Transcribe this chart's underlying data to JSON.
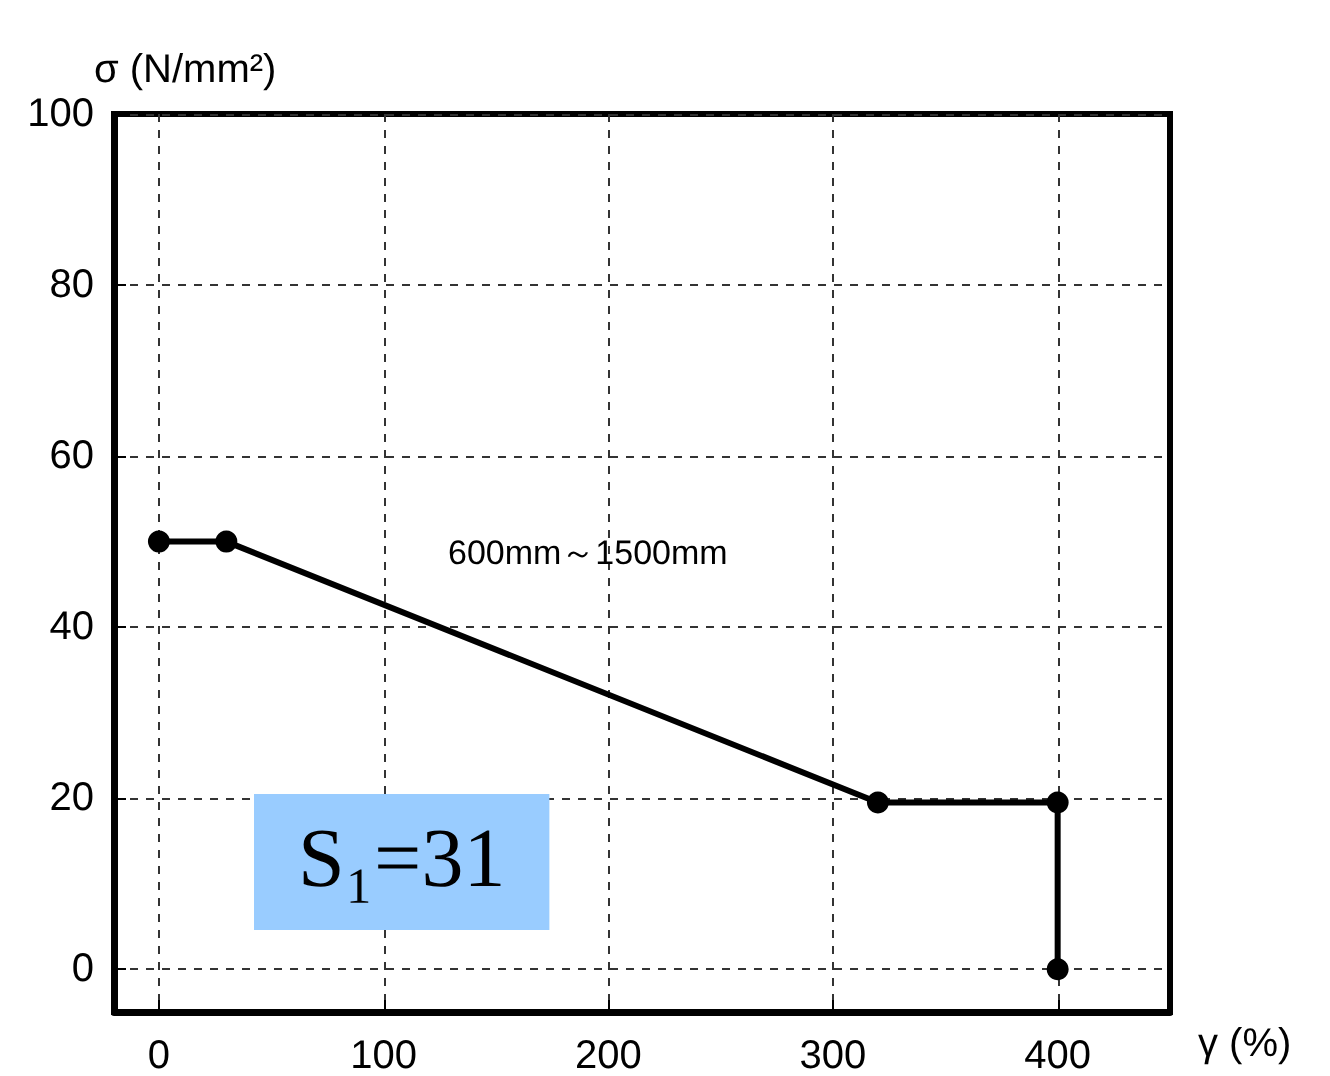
{
  "chart_data": {
    "type": "line",
    "xlabel": "γ (%)",
    "ylabel": "σ (N/mm²)",
    "x": [
      0,
      30,
      320,
      400,
      400
    ],
    "series": [
      {
        "color": "#000000",
        "values": [
          50,
          50,
          19.5,
          19.5,
          0
        ]
      }
    ],
    "xlim": [
      -20,
      450
    ],
    "xticks": [
      0,
      100,
      200,
      300,
      400
    ],
    "ylim": [
      -5,
      100
    ],
    "yticks": [
      0,
      20,
      40,
      60,
      80,
      100
    ],
    "grid": true,
    "marker": "circle",
    "line_style": "solid",
    "annotations": [
      "600mm～1500mm",
      "S₁=31"
    ]
  }
}
